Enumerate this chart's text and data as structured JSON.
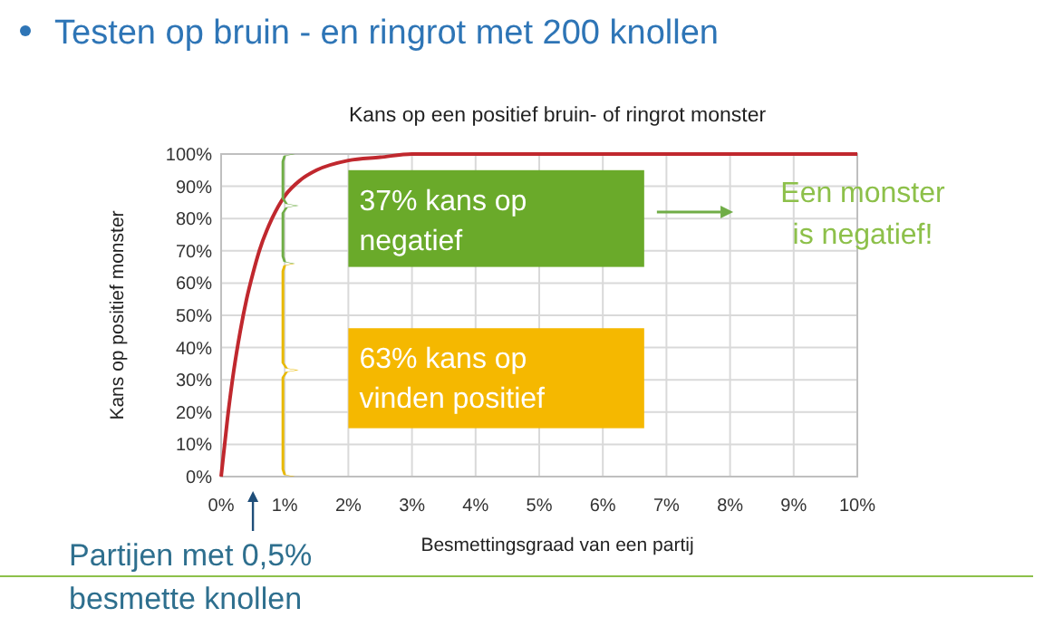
{
  "chart_data": {
    "type": "line",
    "title": "Testen op bruin - en ringrot met 200 knollen",
    "subtitle": "Kans op een positief bruin- of ringrot monster",
    "xlabel": "Besmettingsgraad van een partij",
    "ylabel": "Kans op positief monster",
    "x": [
      0,
      0.1,
      0.2,
      0.3,
      0.4,
      0.5,
      0.6,
      0.8,
      1,
      1.25,
      1.5,
      2,
      2.5,
      3,
      10
    ],
    "series": [
      {
        "color": "#c0282e",
        "values": [
          0,
          18,
          33,
          45,
          55,
          63,
          70,
          80,
          87,
          92,
          95,
          98,
          99,
          100,
          100
        ]
      }
    ],
    "xlim": [
      0,
      10
    ],
    "ylim": [
      0,
      100
    ],
    "xticks": [
      {
        "value": 0,
        "label": "0%"
      },
      {
        "value": 1,
        "label": "1%"
      },
      {
        "value": 2,
        "label": "2%"
      },
      {
        "value": 3,
        "label": "3%"
      },
      {
        "value": 4,
        "label": "4%"
      },
      {
        "value": 5,
        "label": "5%"
      },
      {
        "value": 6,
        "label": "6%"
      },
      {
        "value": 7,
        "label": "7%"
      },
      {
        "value": 8,
        "label": "8%"
      },
      {
        "value": 9,
        "label": "9%"
      },
      {
        "value": 10,
        "label": "10%"
      }
    ],
    "yticks": [
      {
        "value": 0,
        "label": "0%"
      },
      {
        "value": 10,
        "label": "10%"
      },
      {
        "value": 20,
        "label": "20%"
      },
      {
        "value": 30,
        "label": "30%"
      },
      {
        "value": 40,
        "label": "40%"
      },
      {
        "value": 50,
        "label": "50%"
      },
      {
        "value": 60,
        "label": "60%"
      },
      {
        "value": 70,
        "label": "70%"
      },
      {
        "value": 80,
        "label": "80%"
      },
      {
        "value": 90,
        "label": "90%"
      },
      {
        "value": 100,
        "label": "100%"
      }
    ],
    "grid": true,
    "marker": "none",
    "line_style": "solid",
    "annotations": [
      "37% kans op\nnegatief",
      "63% kans op\nvinden positief",
      "Een monster\nis negatief!",
      "Partijen met 0,5%\nbesmette knollen"
    ]
  }
}
